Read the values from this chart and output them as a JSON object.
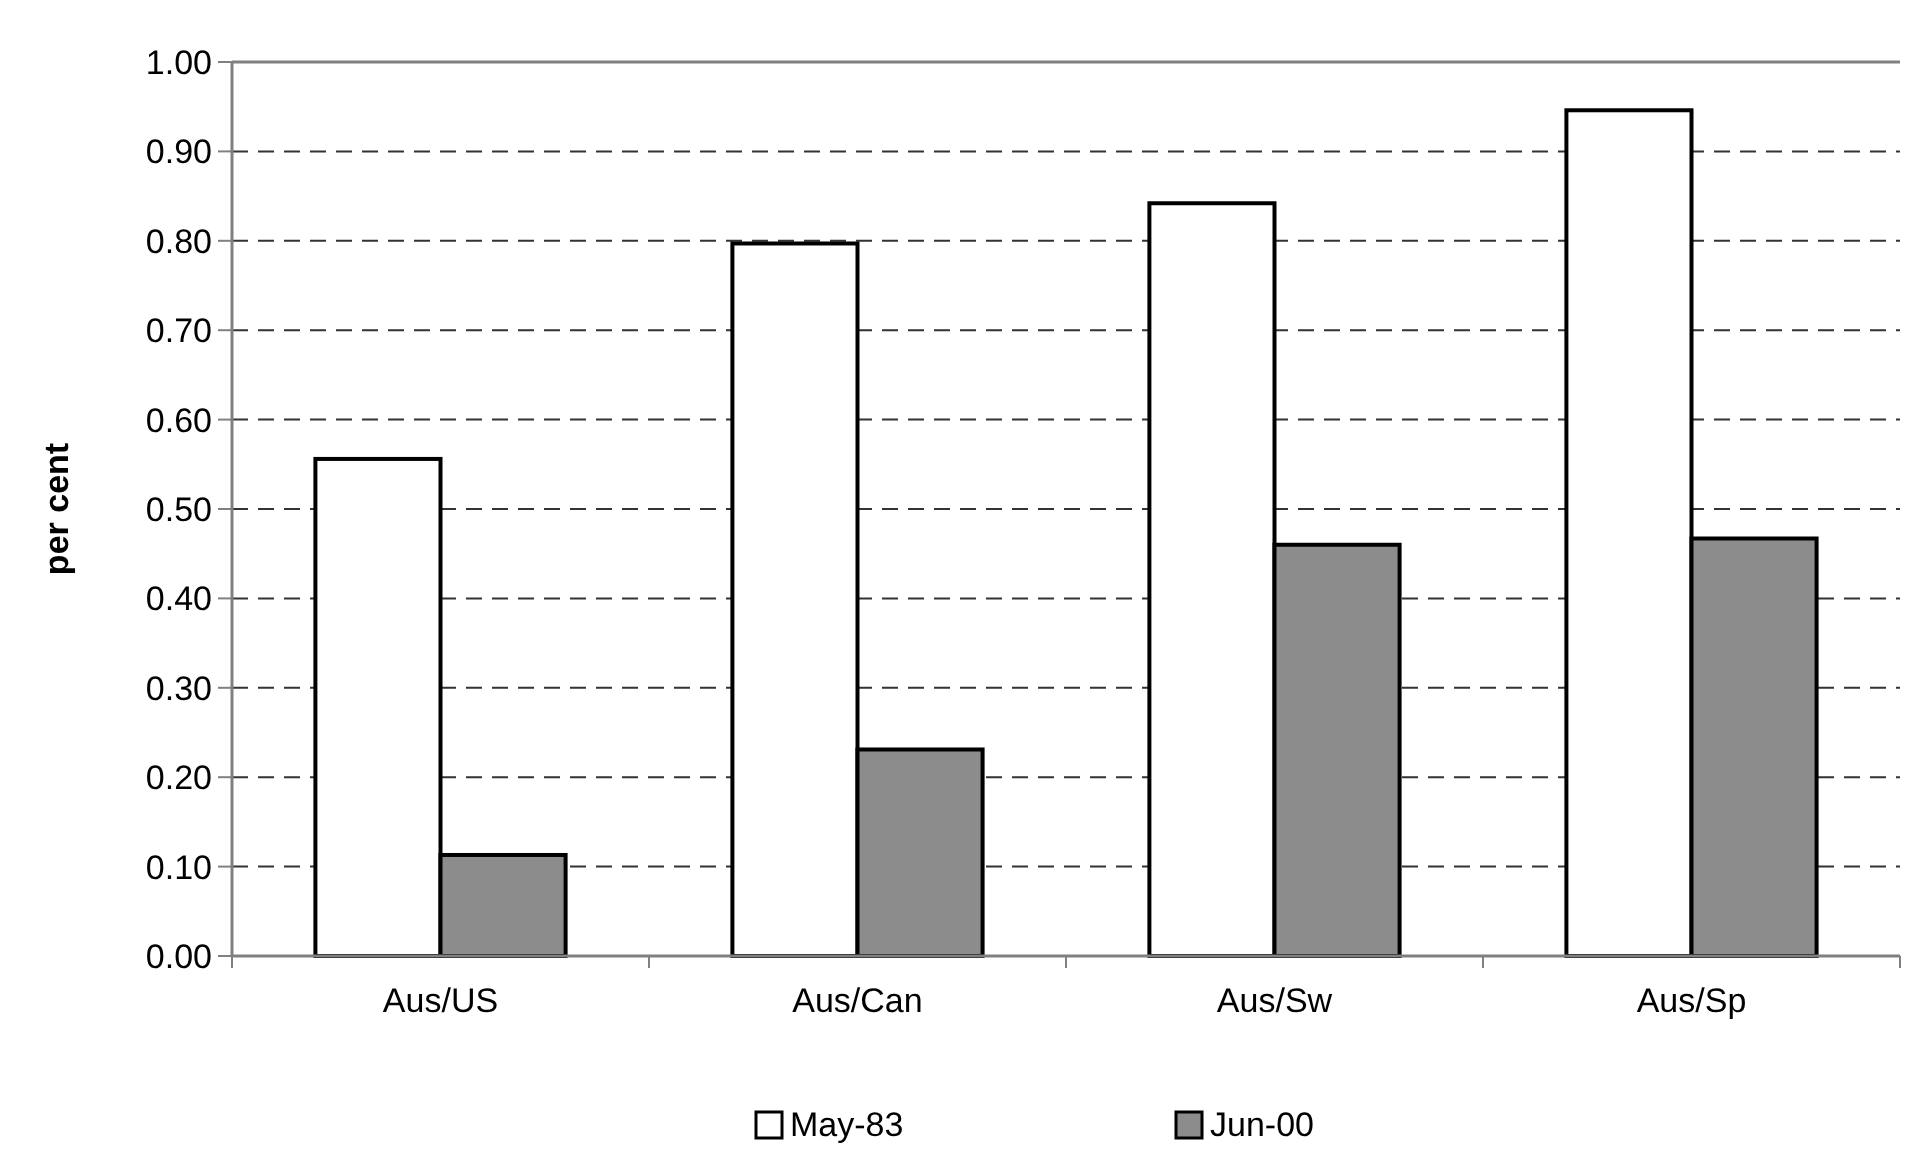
{
  "chart_data": {
    "type": "bar",
    "ylabel": "per cent",
    "categories": [
      "Aus/US",
      "Aus/Can",
      "Aus/Sw",
      "Aus/Sp"
    ],
    "series": [
      {
        "name": "May-83",
        "color": "#ffffff",
        "values": [
          0.556,
          0.797,
          0.842,
          0.946
        ]
      },
      {
        "name": "Jun-00",
        "color": "#8c8c8c",
        "values": [
          0.113,
          0.231,
          0.46,
          0.467
        ]
      }
    ],
    "ylim": [
      0,
      1
    ],
    "yticks": [
      {
        "value": 0,
        "label": "0.00"
      },
      {
        "value": 0.1,
        "label": "0.10"
      },
      {
        "value": 0.2,
        "label": "0.20"
      },
      {
        "value": 0.3,
        "label": "0.30"
      },
      {
        "value": 0.4,
        "label": "0.40"
      },
      {
        "value": 0.5,
        "label": "0.50"
      },
      {
        "value": 0.6,
        "label": "0.60"
      },
      {
        "value": 0.7,
        "label": "0.70"
      },
      {
        "value": 0.8,
        "label": "0.80"
      },
      {
        "value": 0.9,
        "label": "0.90"
      },
      {
        "value": 1,
        "label": "1.00"
      }
    ],
    "grid": "y",
    "line_style": "dashed",
    "legend": "bottom"
  }
}
